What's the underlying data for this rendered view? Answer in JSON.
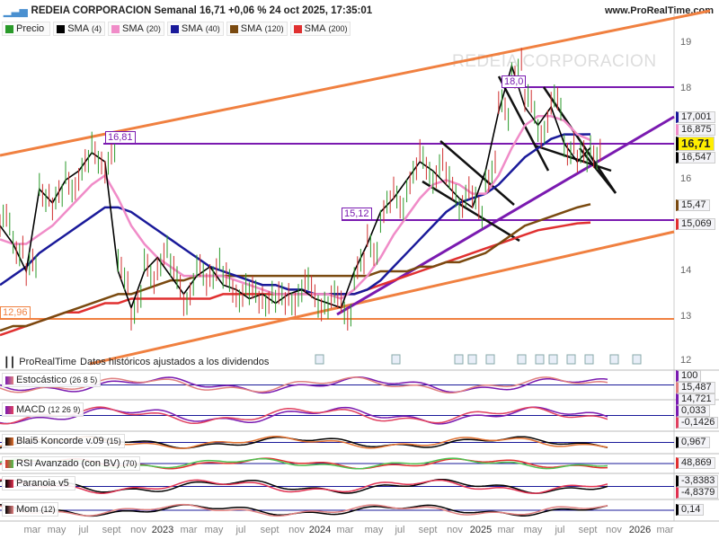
{
  "header": {
    "title": "REDEIA CORPORACION Semanal 16,71 +0,06 % 24 oct 2025, 17:35:01",
    "site": "www.ProRealTime.com",
    "watermark": "REDEIA CORPORACION"
  },
  "legend": [
    {
      "label": "Precio",
      "param": "",
      "color": "#2a9a2a"
    },
    {
      "label": "SMA",
      "param": "(4)",
      "color": "#000000"
    },
    {
      "label": "SMA",
      "param": "(20)",
      "color": "#f08cc8"
    },
    {
      "label": "SMA",
      "param": "(40)",
      "color": "#1a1a9a"
    },
    {
      "label": "SMA",
      "param": "(120)",
      "color": "#7a4a10"
    },
    {
      "label": "SMA",
      "param": "(200)",
      "color": "#e03030"
    }
  ],
  "footer": {
    "brand": "ProRealTime",
    "note": "Datos históricos ajustados a los dividendos"
  },
  "price_axis": {
    "ticks": [
      "19",
      "18",
      "16",
      "14",
      "13",
      "12"
    ],
    "labels": [
      {
        "text": "17,001",
        "color": "#1a1a9a"
      },
      {
        "text": "16,875",
        "color": "#f08cc8"
      },
      {
        "text": "16,71",
        "color": "#000000",
        "highlight": "#ffee00"
      },
      {
        "text": "16,547",
        "color": "#000000"
      },
      {
        "text": "15,47",
        "color": "#7a4a10"
      },
      {
        "text": "15,069",
        "color": "#e03030"
      }
    ]
  },
  "levels": [
    {
      "text": "16,81",
      "color": "#7a1ab0"
    },
    {
      "text": "15,12",
      "color": "#7a1ab0"
    },
    {
      "text": "18,0",
      "color": "#7a1ab0"
    },
    {
      "text": "12,96",
      "color": "#f08040"
    }
  ],
  "panels": [
    {
      "name": "Estocástico",
      "param": "(26 8 5)",
      "values": [
        "100",
        "15,487",
        "14,721"
      ]
    },
    {
      "name": "MACD",
      "param": "(12 26 9)",
      "values": [
        "0,033",
        "-0,1426"
      ]
    },
    {
      "name": "Blai5 Koncorde v.09",
      "param": "(15)",
      "values": [
        "0,967"
      ]
    },
    {
      "name": "RSI Avanzado (con BV)",
      "param": "(70)",
      "values": [
        "48,869"
      ]
    },
    {
      "name": "Paranoia v5",
      "param": "",
      "values": [
        "-3,8383",
        "-4,8379"
      ]
    },
    {
      "name": "Mom",
      "param": "(12)",
      "values": [
        "0,14"
      ]
    }
  ],
  "x_axis": [
    "mar",
    "may",
    "jul",
    "sept",
    "nov",
    "2023",
    "mar",
    "may",
    "jul",
    "sept",
    "nov",
    "2024",
    "mar",
    "may",
    "jul",
    "sept",
    "nov",
    "2025",
    "mar",
    "may",
    "jul",
    "sept",
    "nov",
    "2026",
    "mar"
  ],
  "chart_data": {
    "type": "line",
    "title": "REDEIA CORPORACION Semanal",
    "ylim": [
      12,
      19.5
    ],
    "x": [
      "2022-01",
      "2022-02",
      "2022-03",
      "2022-04",
      "2022-05",
      "2022-06",
      "2022-07",
      "2022-08",
      "2022-09",
      "2022-10",
      "2022-11",
      "2022-12",
      "2023-01",
      "2023-02",
      "2023-03",
      "2023-04",
      "2023-05",
      "2023-06",
      "2023-07",
      "2023-08",
      "2023-09",
      "2023-10",
      "2023-11",
      "2023-12",
      "2024-01",
      "2024-02",
      "2024-03",
      "2024-04",
      "2024-05",
      "2024-06",
      "2024-07",
      "2024-08",
      "2024-09",
      "2024-10",
      "2024-11",
      "2024-12",
      "2025-01",
      "2025-02",
      "2025-03",
      "2025-04",
      "2025-05",
      "2025-06",
      "2025-07",
      "2025-08",
      "2025-09",
      "2025-10"
    ],
    "series": [
      {
        "name": "Precio",
        "color": "#000000",
        "values": [
          15.0,
          14.6,
          14.0,
          15.8,
          15.5,
          16.0,
          16.2,
          16.6,
          16.4,
          14.0,
          13.2,
          14.0,
          14.3,
          13.9,
          13.5,
          13.9,
          14.1,
          13.7,
          13.6,
          13.4,
          13.5,
          13.3,
          13.5,
          13.6,
          13.4,
          13.3,
          13.2,
          14.0,
          14.6,
          15.3,
          15.6,
          16.0,
          16.4,
          16.2,
          15.9,
          15.6,
          15.4,
          16.2,
          17.5,
          18.5,
          17.6,
          17.2,
          17.6,
          16.8,
          16.4,
          16.71
        ]
      },
      {
        "name": "SMA (20)",
        "color": "#f08cc8",
        "values": [
          14.7,
          14.6,
          14.6,
          14.8,
          15.0,
          15.3,
          15.6,
          15.9,
          16.1,
          15.6,
          15.0,
          14.6,
          14.3,
          14.1,
          13.9,
          13.9,
          13.9,
          13.9,
          13.8,
          13.7,
          13.6,
          13.5,
          13.5,
          13.5,
          13.5,
          13.5,
          13.4,
          13.6,
          13.9,
          14.3,
          14.8,
          15.2,
          15.6,
          15.9,
          16.0,
          15.9,
          15.7,
          15.7,
          16.1,
          16.7,
          17.2,
          17.4,
          17.4,
          17.3,
          17.0,
          16.875
        ]
      },
      {
        "name": "SMA (40)",
        "color": "#1a1a9a",
        "values": [
          13.7,
          13.9,
          14.1,
          14.4,
          14.6,
          14.8,
          15.0,
          15.2,
          15.4,
          15.4,
          15.3,
          15.1,
          14.9,
          14.7,
          14.5,
          14.3,
          14.1,
          14.0,
          13.9,
          13.8,
          13.7,
          13.7,
          13.6,
          13.6,
          13.5,
          13.5,
          13.5,
          13.5,
          13.6,
          13.8,
          14.1,
          14.4,
          14.7,
          15.0,
          15.3,
          15.5,
          15.6,
          15.7,
          15.9,
          16.2,
          16.5,
          16.7,
          16.9,
          17.0,
          17.0,
          17.001
        ]
      },
      {
        "name": "SMA (120)",
        "color": "#7a4a10",
        "values": [
          12.7,
          12.8,
          12.8,
          12.9,
          13.0,
          13.1,
          13.2,
          13.3,
          13.4,
          13.5,
          13.5,
          13.6,
          13.7,
          13.8,
          13.8,
          13.9,
          13.9,
          13.9,
          13.9,
          13.9,
          13.9,
          13.9,
          13.9,
          13.9,
          13.9,
          13.9,
          13.9,
          13.9,
          13.9,
          14.0,
          14.0,
          14.0,
          14.1,
          14.1,
          14.2,
          14.2,
          14.3,
          14.4,
          14.6,
          14.8,
          15.0,
          15.1,
          15.2,
          15.3,
          15.4,
          15.47
        ]
      },
      {
        "name": "SMA (200)",
        "color": "#e03030",
        "values": [
          12.6,
          12.7,
          12.8,
          12.9,
          13.0,
          13.1,
          13.1,
          13.2,
          13.3,
          13.3,
          13.4,
          13.4,
          13.4,
          13.4,
          13.4,
          13.4,
          13.4,
          13.5,
          13.5,
          13.5,
          13.5,
          13.5,
          13.5,
          13.5,
          13.5,
          13.5,
          13.5,
          13.5,
          13.6,
          13.7,
          13.8,
          13.9,
          14.0,
          14.1,
          14.2,
          14.3,
          14.4,
          14.5,
          14.6,
          14.7,
          14.8,
          14.9,
          14.95,
          15.0,
          15.05,
          15.069
        ]
      }
    ]
  }
}
